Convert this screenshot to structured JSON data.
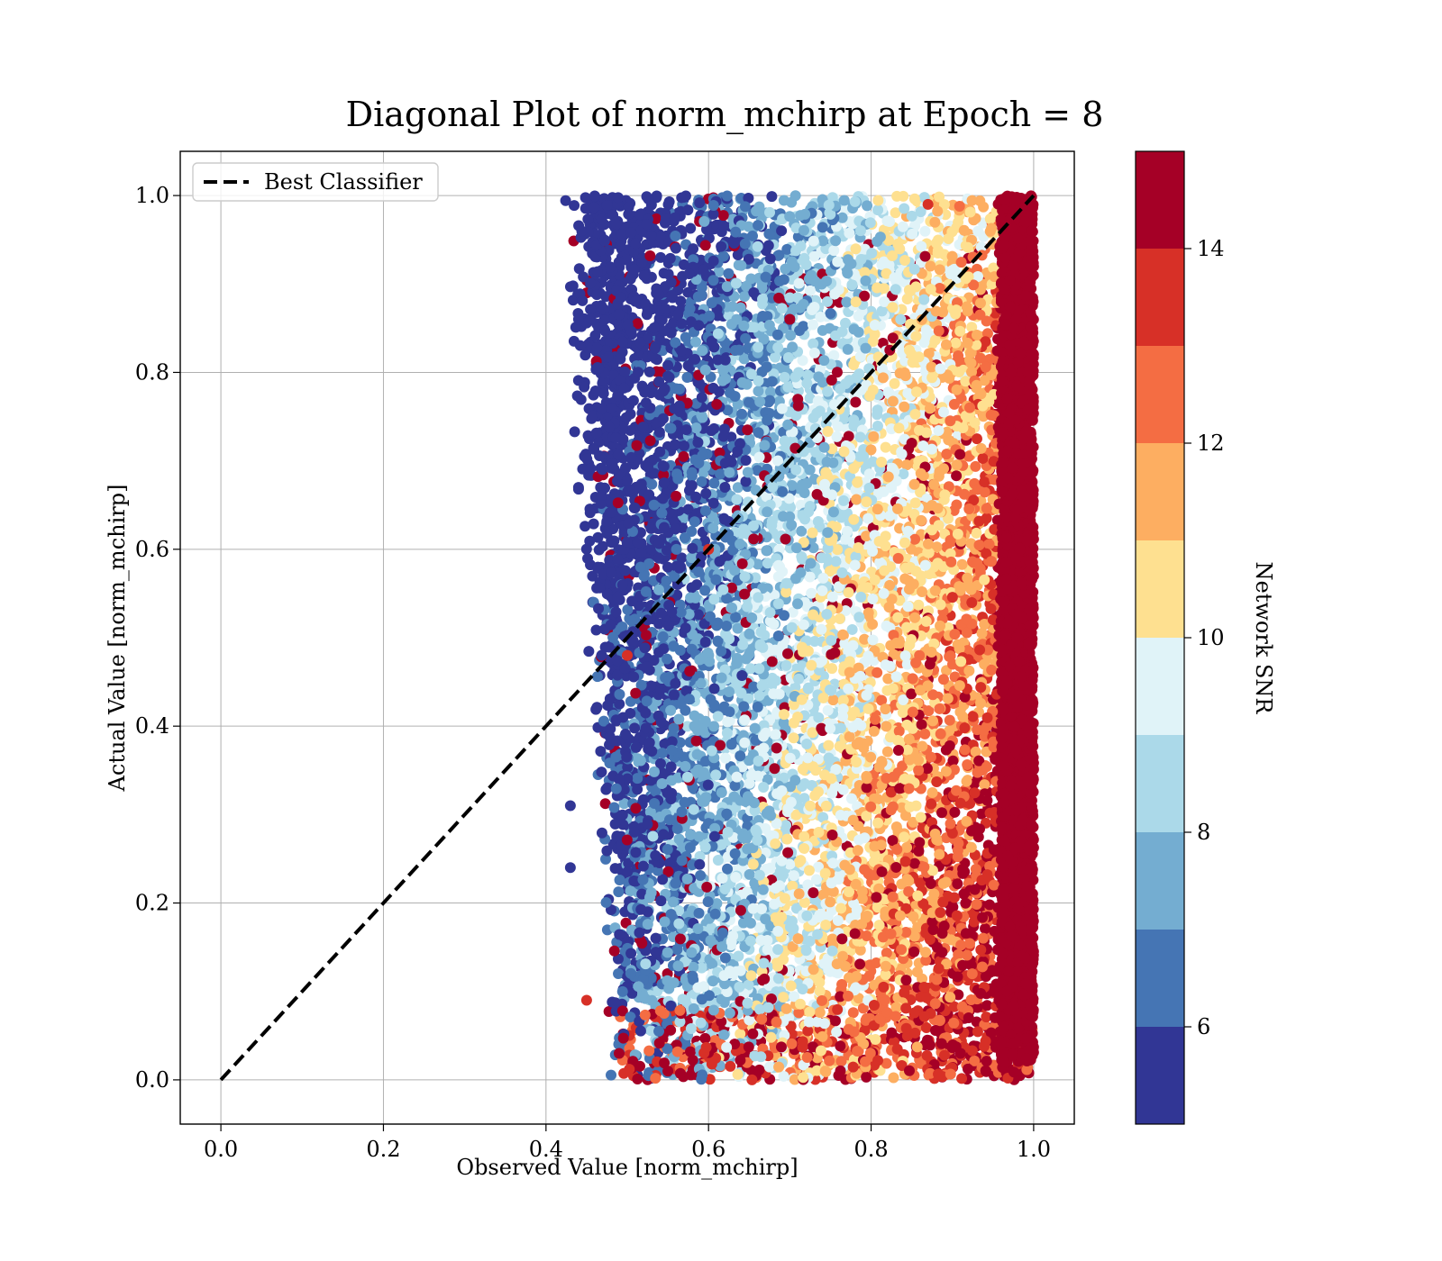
{
  "chart_data": {
    "type": "scatter",
    "title": "Diagonal Plot of norm_mchirp at Epoch = 8",
    "xlabel": "Observed Value [norm_mchirp]",
    "ylabel": "Actual Value [norm_mchirp]",
    "xlim": [
      -0.05,
      1.05
    ],
    "ylim": [
      -0.05,
      1.05
    ],
    "xticks": [
      0.0,
      0.2,
      0.4,
      0.6,
      0.8,
      1.0
    ],
    "yticks": [
      0.0,
      0.2,
      0.4,
      0.6,
      0.8,
      1.0
    ],
    "xtick_labels": [
      "0.0",
      "0.2",
      "0.4",
      "0.6",
      "0.8",
      "1.0"
    ],
    "ytick_labels": [
      "0.0",
      "0.2",
      "0.4",
      "0.6",
      "0.8",
      "1.0"
    ],
    "grid": true,
    "legend": {
      "placement": "upper-left",
      "entries": [
        {
          "label": "Best Classifier",
          "style": "dashed",
          "color": "#000000"
        }
      ]
    },
    "reference_line": {
      "name": "Best Classifier",
      "x": [
        0.0,
        1.0
      ],
      "y": [
        0.0,
        1.0
      ]
    },
    "colorbar": {
      "label": "Network SNR",
      "range": [
        5,
        15
      ],
      "ticks": [
        6,
        8,
        10,
        12,
        14
      ],
      "tick_labels": [
        "6",
        "8",
        "10",
        "12",
        "14"
      ],
      "colormap": "RdYlBu_r",
      "bins": [
        5,
        6,
        7,
        8,
        9,
        10,
        11,
        12,
        13,
        14,
        15
      ],
      "colors": [
        "#313695",
        "#4575b4",
        "#74add1",
        "#abd9e9",
        "#e0f3f8",
        "#fee090",
        "#fdae61",
        "#f46d43",
        "#d73027",
        "#a50026"
      ]
    },
    "point_cloud": {
      "observed_range": [
        0.43,
        1.0
      ],
      "actual_range": [
        0.0,
        1.0
      ],
      "samples": [
        [
          0.44,
          0.86,
          5.5
        ],
        [
          0.44,
          0.67,
          5.5
        ],
        [
          0.43,
          0.31,
          5.5
        ],
        [
          0.43,
          0.24,
          5.8
        ],
        [
          0.45,
          0.09,
          13.0
        ],
        [
          0.5,
          0.48,
          13.0
        ],
        [
          0.56,
          0.66,
          14.2
        ],
        [
          0.6,
          0.6,
          13.2
        ],
        [
          0.7,
          0.86,
          14.3
        ],
        [
          0.85,
          0.72,
          14.3
        ],
        [
          0.91,
          0.03,
          14.5
        ],
        [
          0.87,
          0.99,
          13.5
        ],
        [
          0.55,
          0.01,
          14.5
        ],
        [
          0.49,
          0.03,
          14.5
        ],
        [
          0.98,
          0.5,
          15.0
        ],
        [
          0.99,
          0.97,
          15.0
        ]
      ]
    }
  }
}
